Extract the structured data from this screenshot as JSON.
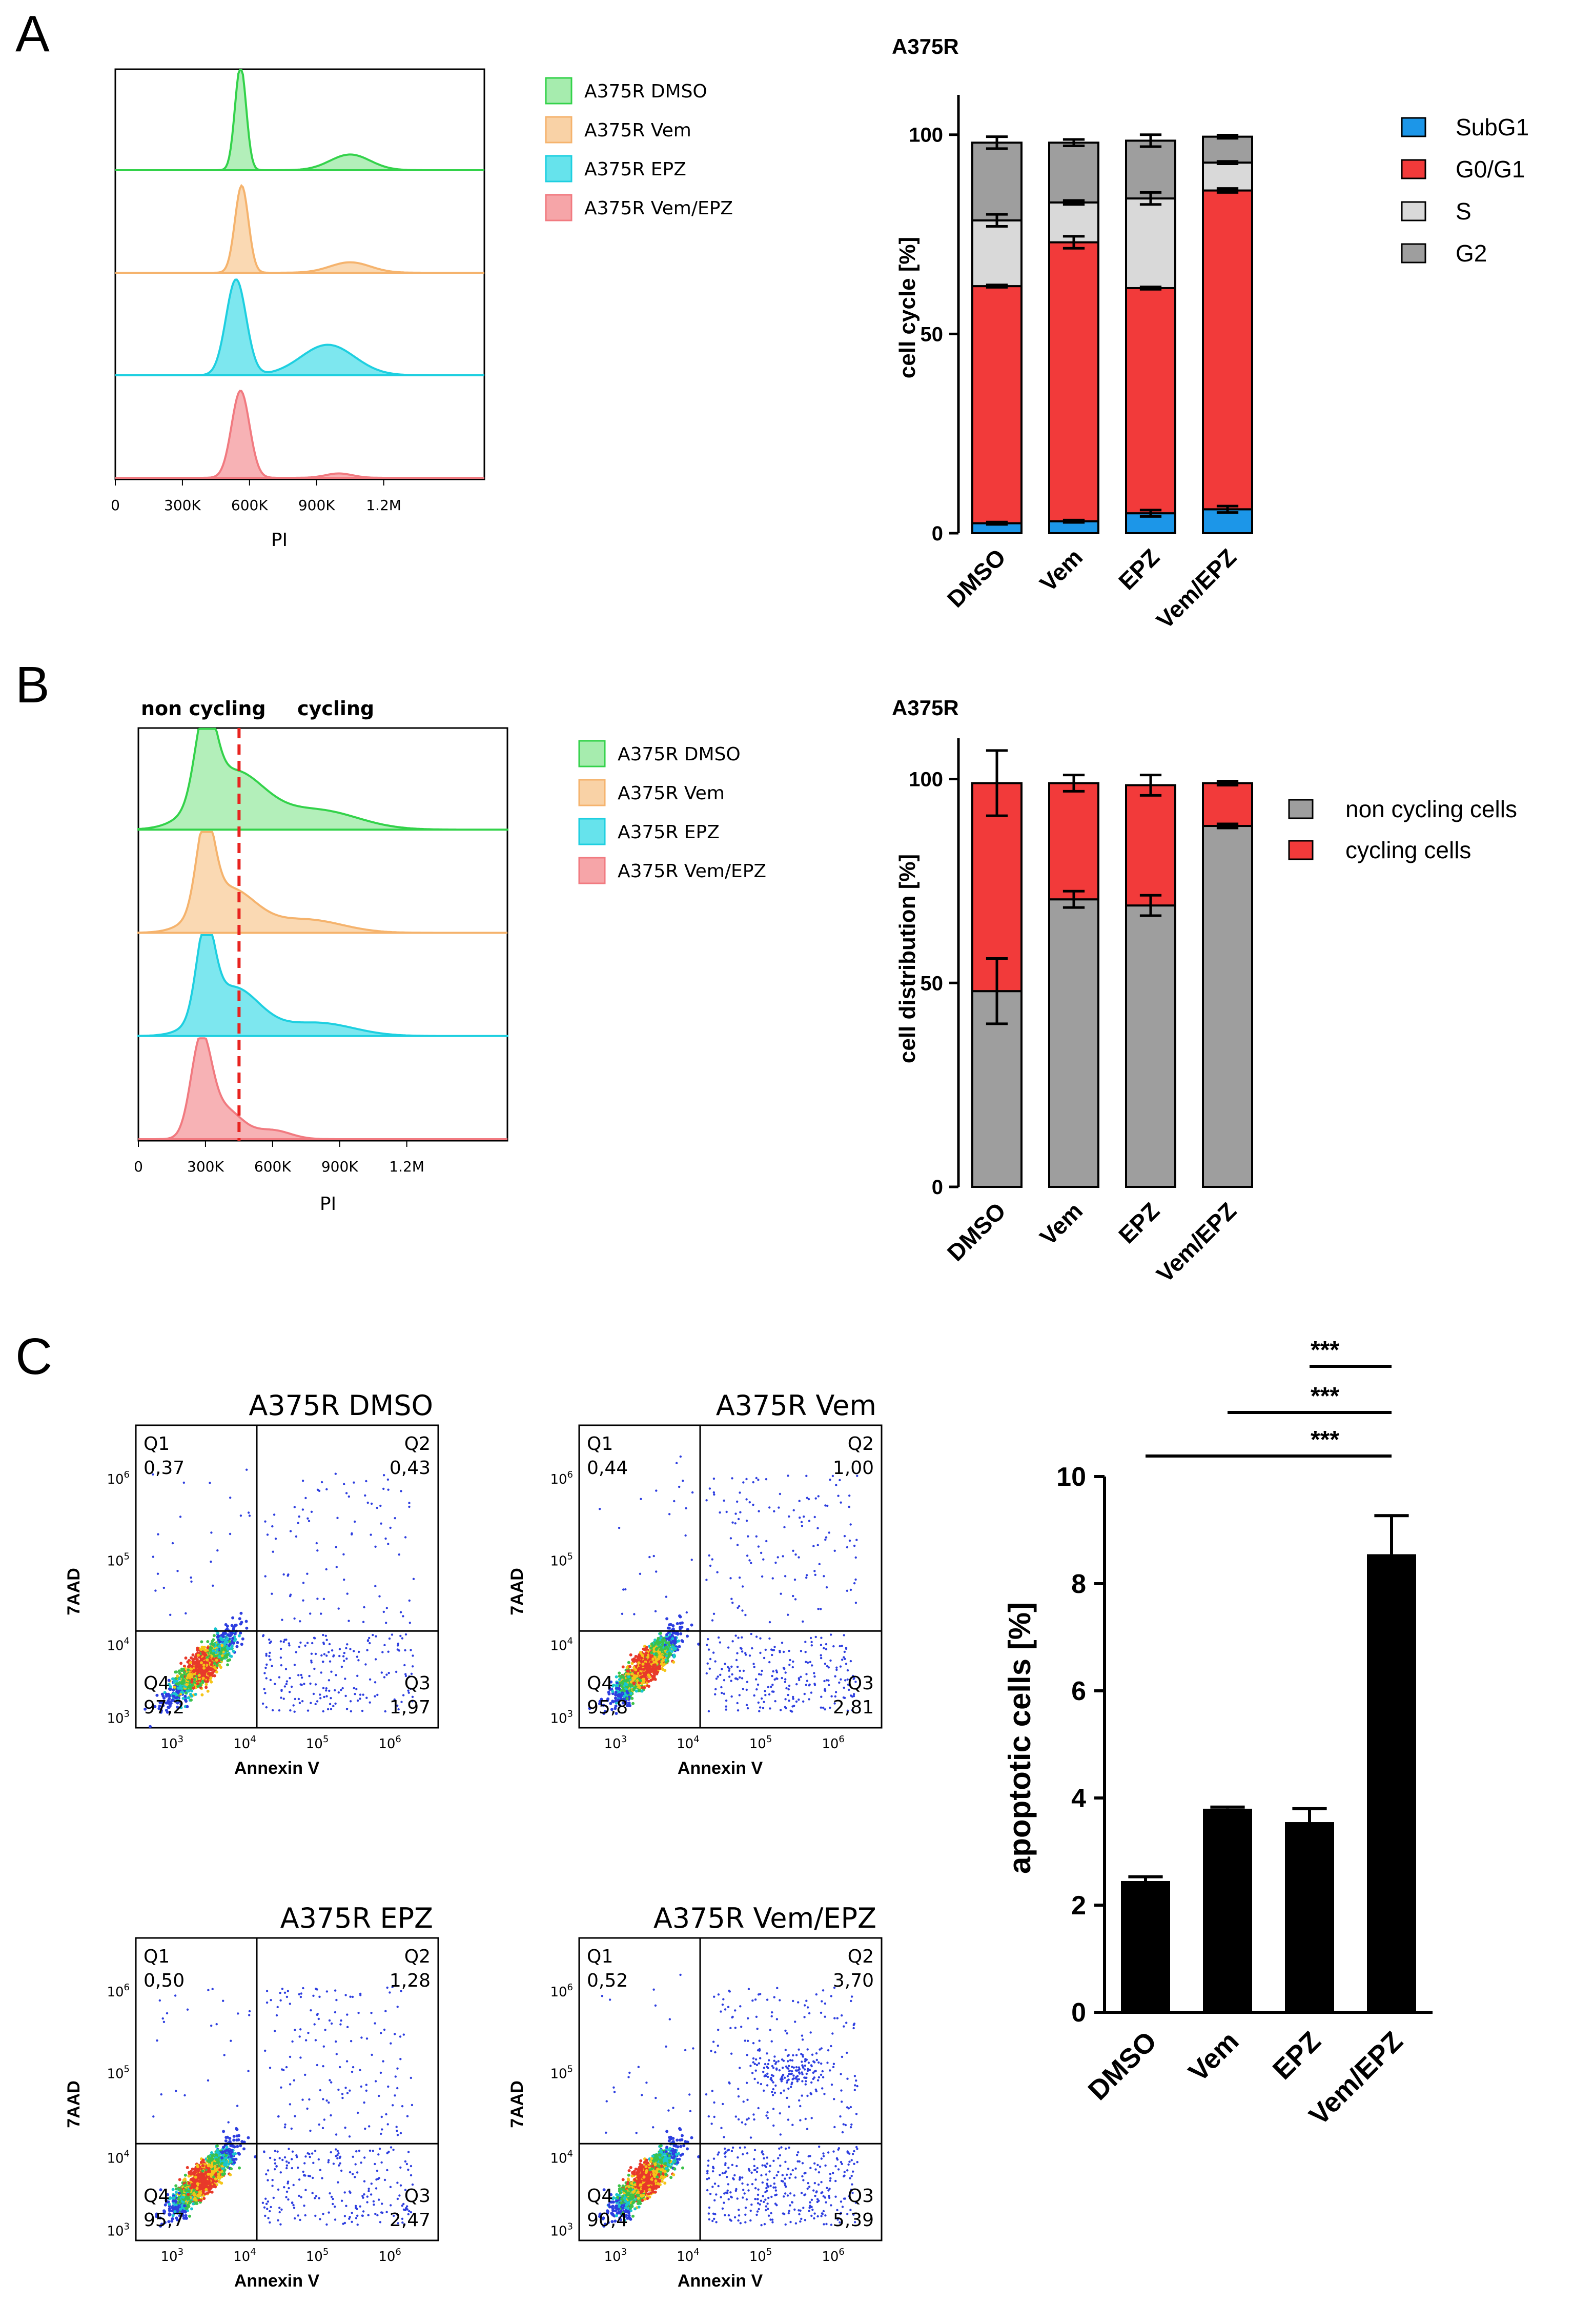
{
  "panel_letters": {
    "a": "A",
    "b": "B",
    "c": "C"
  },
  "series_legend": [
    "A375R DMSO",
    "A375R Vem",
    "A375R EPZ",
    "A375R Vem/EPZ"
  ],
  "series_colors": {
    "dmso": {
      "stroke": "#33d24a",
      "fill": "#a6ecae"
    },
    "vem": {
      "stroke": "#f5b36d",
      "fill": "#f9d2a6"
    },
    "epz": {
      "stroke": "#1ecfe0",
      "fill": "#66e3ec"
    },
    "vemepz": {
      "stroke": "#f17a80",
      "fill": "#f6a5a8"
    }
  },
  "hist_a": {
    "xticks": [
      "0",
      "300K",
      "600K",
      "900K",
      "1.2M"
    ],
    "xtick_values": [
      0,
      300000,
      600000,
      900000,
      1200000
    ],
    "xlabel": "PI"
  },
  "hist_b": {
    "xticks": [
      "0",
      "300K",
      "600K",
      "900K",
      "1.2M"
    ],
    "xtick_values": [
      0,
      300000,
      600000,
      900000,
      1200000
    ],
    "xlabel": "PI",
    "gate_labels": {
      "left": "non cycling",
      "right": "cycling"
    },
    "gate_value": 450000,
    "gate_color": "#e8231f"
  },
  "chart_data": [
    {
      "id": "A-cell-cycle",
      "type": "bar",
      "stacked": true,
      "title": "A375R",
      "ylabel": "cell cycle [%]",
      "ylim": [
        0,
        110
      ],
      "yticks": [
        "0",
        "50",
        "100"
      ],
      "ytick_values": [
        0,
        50,
        100
      ],
      "categories": [
        "DMSO",
        "Vem",
        "EPZ",
        "Vem/EPZ"
      ],
      "series": [
        {
          "name": "SubG1",
          "color": "#1c96e8",
          "values": [
            2.5,
            3.0,
            5.0,
            6.0
          ],
          "errors": [
            0.3,
            0.3,
            0.8,
            0.8
          ]
        },
        {
          "name": "G0/G1",
          "color": "#f23a3a",
          "values": [
            59.5,
            70.0,
            56.5,
            80.0
          ],
          "errors": [
            0.3,
            1.5,
            0.3,
            0.5
          ]
        },
        {
          "name": "S",
          "color": "#d9d9d9",
          "values": [
            16.5,
            10.0,
            22.5,
            7.0
          ],
          "errors": [
            1.5,
            0.5,
            1.5,
            0.3
          ]
        },
        {
          "name": "G2",
          "color": "#9e9e9e",
          "values": [
            19.5,
            15.0,
            14.5,
            6.5
          ],
          "errors": [
            1.5,
            0.8,
            1.5,
            0.4
          ]
        }
      ]
    },
    {
      "id": "B-cell-distribution",
      "type": "bar",
      "stacked": true,
      "title": "A375R",
      "ylabel": "cell distribution [%]",
      "ylim": [
        0,
        110
      ],
      "yticks": [
        "0",
        "50",
        "100"
      ],
      "ytick_values": [
        0,
        50,
        100
      ],
      "categories": [
        "DMSO",
        "Vem",
        "EPZ",
        "Vem/EPZ"
      ],
      "series": [
        {
          "name": "non cycling cells",
          "color": "#9e9e9e",
          "values": [
            48,
            70.5,
            69,
            88.5
          ],
          "errors": [
            8,
            2,
            2.5,
            0.5
          ]
        },
        {
          "name": "cycling cells",
          "color": "#f23a3a",
          "values": [
            51,
            28.5,
            29.5,
            10.5
          ],
          "errors": [
            8,
            2,
            2.5,
            0.5
          ]
        }
      ]
    },
    {
      "id": "C-apoptotic-cells",
      "type": "bar",
      "title": "",
      "ylabel": "apoptotic cells [%]",
      "ylim": [
        0,
        10
      ],
      "yticks": [
        "0",
        "2",
        "4",
        "6",
        "8",
        "10"
      ],
      "ytick_values": [
        0,
        2,
        4,
        6,
        8,
        10
      ],
      "categories": [
        "DMSO",
        "Vem",
        "EPZ",
        "Vem/EPZ"
      ],
      "values": [
        2.45,
        3.8,
        3.55,
        8.55
      ],
      "errors": [
        0.08,
        0.03,
        0.25,
        0.72
      ],
      "bar_color": "#000000",
      "significance": [
        {
          "from": "DMSO",
          "to": "Vem/EPZ",
          "label": "***"
        },
        {
          "from": "Vem",
          "to": "Vem/EPZ",
          "label": "***"
        },
        {
          "from": "EPZ",
          "to": "Vem/EPZ",
          "label": "***"
        }
      ]
    }
  ],
  "scatter": {
    "xlabel": "Annexin V",
    "ylabel": "7AAD",
    "tick_base": "10",
    "tick_exponents": [
      "3",
      "4",
      "5",
      "6"
    ],
    "quadrant_labels": [
      "Q1",
      "Q2",
      "Q3",
      "Q4"
    ],
    "plots": [
      {
        "title": "A375R DMSO",
        "q1": "0,37",
        "q2": "0,43",
        "q3": "1,97",
        "q4": "97,2"
      },
      {
        "title": "A375R Vem",
        "q1": "0,44",
        "q2": "1,00",
        "q3": "2,81",
        "q4": "95,8"
      },
      {
        "title": "A375R EPZ",
        "q1": "0,50",
        "q2": "1,28",
        "q3": "2,47",
        "q4": "95,7"
      },
      {
        "title": "A375R Vem/EPZ",
        "q1": "0,52",
        "q2": "3,70",
        "q3": "5,39",
        "q4": "90,4"
      }
    ]
  }
}
